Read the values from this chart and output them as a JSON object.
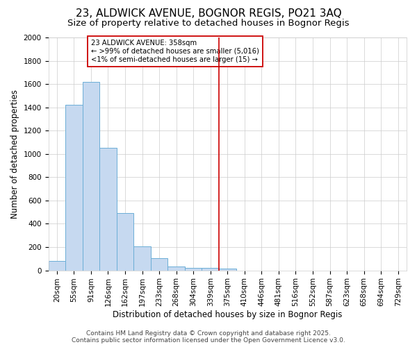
{
  "title": "23, ALDWICK AVENUE, BOGNOR REGIS, PO21 3AQ",
  "subtitle": "Size of property relative to detached houses in Bognor Regis",
  "xlabel": "Distribution of detached houses by size in Bognor Regis",
  "ylabel": "Number of detached properties",
  "categories": [
    "20sqm",
    "55sqm",
    "91sqm",
    "126sqm",
    "162sqm",
    "197sqm",
    "233sqm",
    "268sqm",
    "304sqm",
    "339sqm",
    "375sqm",
    "410sqm",
    "446sqm",
    "481sqm",
    "516sqm",
    "552sqm",
    "587sqm",
    "623sqm",
    "658sqm",
    "694sqm",
    "729sqm"
  ],
  "bar_values": [
    80,
    1420,
    1620,
    1055,
    490,
    205,
    105,
    35,
    20,
    20,
    15,
    0,
    0,
    0,
    0,
    0,
    0,
    0,
    0,
    0,
    0
  ],
  "bar_color": "#c6d9f0",
  "bar_edge_color": "#6baed6",
  "background_color": "#ffffff",
  "grid_color": "#cccccc",
  "red_line_x": 9.5,
  "red_line_color": "#cc0000",
  "annotation_text": "23 ALDWICK AVENUE: 358sqm\n← >99% of detached houses are smaller (5,016)\n<1% of semi-detached houses are larger (15) →",
  "annotation_box_color": "#ffffff",
  "annotation_box_edge_color": "#cc0000",
  "ylim": [
    0,
    2000
  ],
  "yticks": [
    0,
    200,
    400,
    600,
    800,
    1000,
    1200,
    1400,
    1600,
    1800,
    2000
  ],
  "footer_line1": "Contains HM Land Registry data © Crown copyright and database right 2025.",
  "footer_line2": "Contains public sector information licensed under the Open Government Licence v3.0.",
  "title_fontsize": 11,
  "subtitle_fontsize": 9.5,
  "axis_label_fontsize": 8.5,
  "tick_fontsize": 7.5,
  "footer_fontsize": 6.5
}
